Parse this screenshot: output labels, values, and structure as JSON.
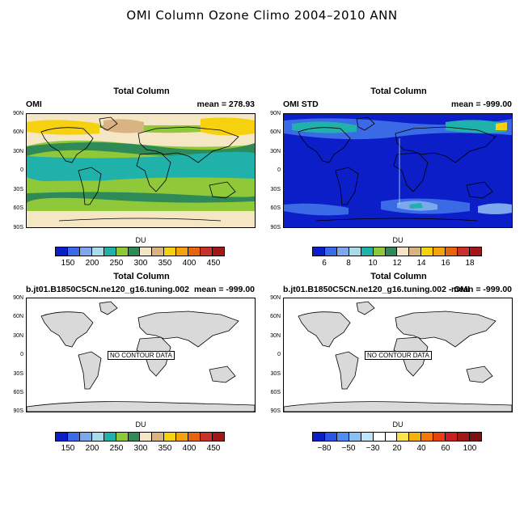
{
  "main_title": "OMI Column Ozone Climo 2004–2010 ANN",
  "lat_labels": [
    "90N",
    "60N",
    "30N",
    "0",
    "30S",
    "60S",
    "90S"
  ],
  "no_data_text": "NO CONTOUR DATA",
  "panels": [
    {
      "title": "Total Column",
      "left": "OMI",
      "right": "mean = 278.93",
      "colorbar_title": "DU",
      "colorbar_labels": [
        "150",
        "200",
        "250",
        "300",
        "350",
        "400",
        "450"
      ],
      "colorbar_colors": [
        "#0b1ec8",
        "#3b6ae6",
        "#7ea8ee",
        "#a8dce8",
        "#20b2aa",
        "#8fc93a",
        "#2e8b57",
        "#f5e6c4",
        "#d9b381",
        "#f5d10f",
        "#f5a20f",
        "#e8650f",
        "#c8322a",
        "#a01818"
      ]
    },
    {
      "title": "Total Column",
      "left": "OMI STD",
      "right": "mean = -999.00",
      "colorbar_title": "DU",
      "colorbar_labels": [
        "6",
        "8",
        "10",
        "12",
        "14",
        "16",
        "18"
      ],
      "colorbar_colors": [
        "#0b1ec8",
        "#3b6ae6",
        "#7ea8ee",
        "#a8dce8",
        "#20b2aa",
        "#8fc93a",
        "#2e8b57",
        "#f5e6c4",
        "#d9b381",
        "#f5d10f",
        "#f5a20f",
        "#e8650f",
        "#c8322a",
        "#a01818"
      ]
    },
    {
      "title": "Total Column",
      "left": "b.jt01.B1850C5CN.ne120_g16.tuning.002",
      "right": "mean = -999.00",
      "colorbar_title": "DU",
      "colorbar_labels": [
        "150",
        "200",
        "250",
        "300",
        "350",
        "400",
        "450"
      ],
      "colorbar_colors": [
        "#0b1ec8",
        "#3b6ae6",
        "#7ea8ee",
        "#a8dce8",
        "#20b2aa",
        "#8fc93a",
        "#2e8b57",
        "#f5e6c4",
        "#d9b381",
        "#f5d10f",
        "#f5a20f",
        "#e8650f",
        "#c8322a",
        "#a01818"
      ]
    },
    {
      "title": "Total Column",
      "left": "b.jt01.B1850C5CN.ne120_g16.tuning.002 - OMI",
      "right": "mean = -999.00",
      "colorbar_title": "DU",
      "colorbar_labels": [
        "−80",
        "−50",
        "−30",
        "20",
        "40",
        "60",
        "100"
      ],
      "colorbar_colors": [
        "#0b1ec8",
        "#2a56e0",
        "#4f8ef0",
        "#86c2f5",
        "#bfe3f7",
        "#ffffff",
        "#ffffff",
        "#fbe14d",
        "#f5b20f",
        "#f5780f",
        "#e8410f",
        "#c82020",
        "#a01818",
        "#7a1010"
      ]
    }
  ]
}
